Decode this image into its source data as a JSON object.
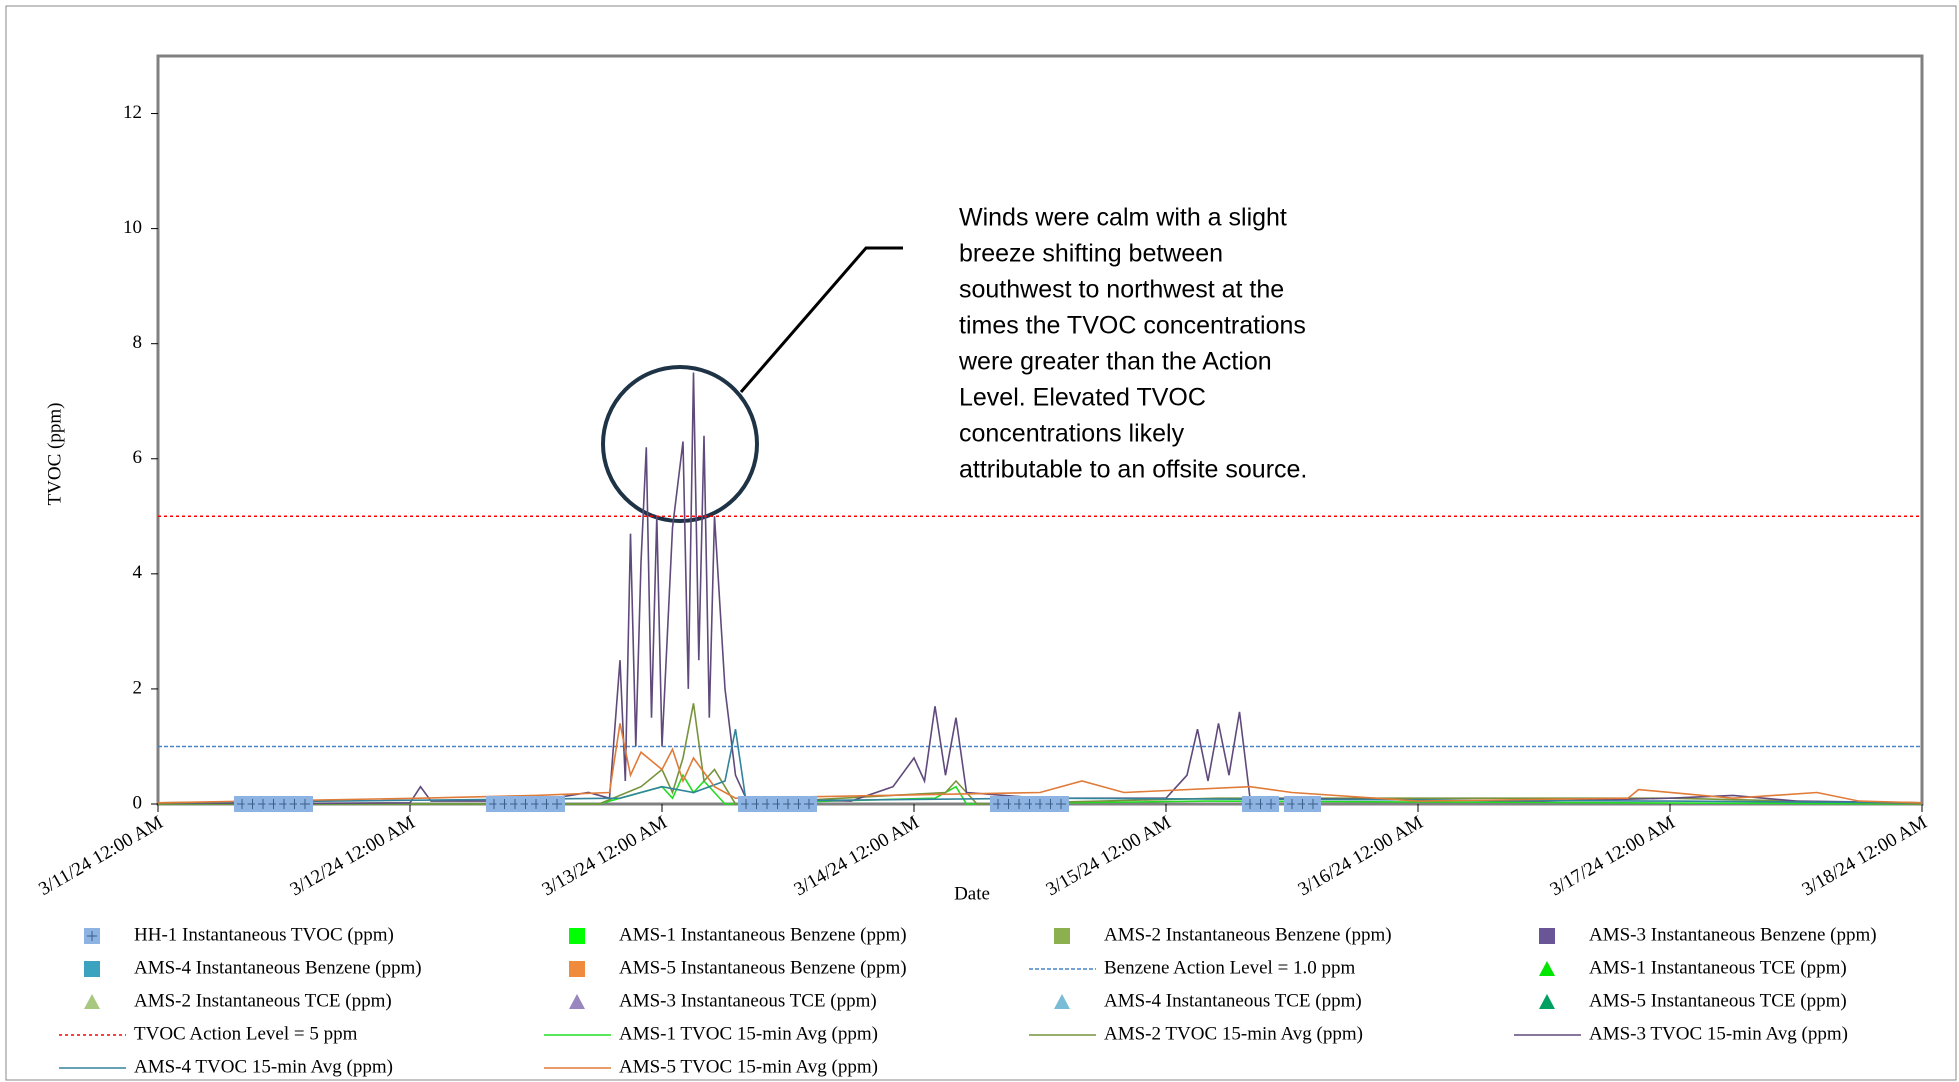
{
  "chart_data": {
    "type": "line",
    "xlabel": "Date",
    "ylabel": "TVOC (ppm)",
    "annotation": [
      "Winds were calm with a slight",
      "breeze shifting between",
      "southwest to northwest at the",
      "times the TVOC concentrations",
      "were greater than the Action",
      "Level. Elevated TVOC",
      "concentrations likely",
      "attributable to an offsite source."
    ],
    "xlim": [
      "2024-03-11T00:00",
      "2024-03-18T00:00"
    ],
    "xticks": [
      {
        "value": "2024-03-11T00:00",
        "label": "3/11/24 12:00 AM"
      },
      {
        "value": "2024-03-12T00:00",
        "label": "3/12/24 12:00 AM"
      },
      {
        "value": "2024-03-13T00:00",
        "label": "3/13/24 12:00 AM"
      },
      {
        "value": "2024-03-14T00:00",
        "label": "3/14/24 12:00 AM"
      },
      {
        "value": "2024-03-15T00:00",
        "label": "3/15/24 12:00 AM"
      },
      {
        "value": "2024-03-16T00:00",
        "label": "3/16/24 12:00 AM"
      },
      {
        "value": "2024-03-17T00:00",
        "label": "3/17/24 12:00 AM"
      },
      {
        "value": "2024-03-18T00:00",
        "label": "3/18/24 12:00 AM"
      }
    ],
    "ylim": [
      0,
      13
    ],
    "yticks": [
      0,
      2,
      4,
      6,
      8,
      10,
      12
    ],
    "series": [
      {
        "name": "HH-1 Instantaneous TVOC (ppm)",
        "color": "#8db3e2",
        "style": "square-cross",
        "x": [
          "2024-03-11T08:00",
          "2024-03-11T09:00",
          "2024-03-11T10:00",
          "2024-03-11T11:00",
          "2024-03-11T12:00",
          "2024-03-11T13:00",
          "2024-03-11T14:00",
          "2024-03-12T08:00",
          "2024-03-12T09:00",
          "2024-03-12T10:00",
          "2024-03-12T11:00",
          "2024-03-12T12:00",
          "2024-03-12T13:00",
          "2024-03-12T14:00",
          "2024-03-13T08:00",
          "2024-03-13T09:00",
          "2024-03-13T10:00",
          "2024-03-13T11:00",
          "2024-03-13T12:00",
          "2024-03-13T13:00",
          "2024-03-13T14:00",
          "2024-03-14T08:00",
          "2024-03-14T09:00",
          "2024-03-14T10:00",
          "2024-03-14T11:00",
          "2024-03-14T12:00",
          "2024-03-14T13:00",
          "2024-03-14T14:00",
          "2024-03-15T08:00",
          "2024-03-15T09:00",
          "2024-03-15T10:00",
          "2024-03-15T12:00",
          "2024-03-15T13:00",
          "2024-03-15T14:00"
        ],
        "values": [
          0,
          0,
          0,
          0,
          0,
          0,
          0,
          0,
          0,
          0,
          0,
          0,
          0,
          0,
          0,
          0,
          0,
          0,
          0,
          0,
          0,
          0,
          0,
          0,
          0,
          0,
          0,
          0,
          0,
          0,
          0,
          0,
          0,
          0
        ]
      },
      {
        "name": "AMS-1 Instantaneous Benzene (ppm)",
        "color": "#00ff00",
        "style": "square"
      },
      {
        "name": "AMS-2 Instantaneous Benzene (ppm)",
        "color": "#8db04e",
        "style": "square"
      },
      {
        "name": "AMS-3 Instantaneous Benzene (ppm)",
        "color": "#6a5596",
        "style": "square"
      },
      {
        "name": "AMS-4 Instantaneous Benzene (ppm)",
        "color": "#3ba3c0",
        "style": "square"
      },
      {
        "name": "AMS-5 Instantaneous Benzene (ppm)",
        "color": "#f08a3c",
        "style": "square"
      },
      {
        "name": "Benzene Action Level = 1.0 ppm",
        "color": "#4a86c8",
        "style": "reference",
        "value": 1.0
      },
      {
        "name": "AMS-1 Instantaneous TCE (ppm)",
        "color": "#00e600",
        "style": "triangle"
      },
      {
        "name": "AMS-2 Instantaneous TCE (ppm)",
        "color": "#a8c77f",
        "style": "triangle"
      },
      {
        "name": "AMS-3 Instantaneous TCE (ppm)",
        "color": "#9a86bf",
        "style": "triangle"
      },
      {
        "name": "AMS-4 Instantaneous TCE (ppm)",
        "color": "#79bcd6",
        "style": "triangle"
      },
      {
        "name": "AMS-5 Instantaneous TCE (ppm)",
        "color": "#00a060",
        "style": "triangle"
      },
      {
        "name": "TVOC Action Level = 5 ppm",
        "color": "#ff0000",
        "style": "reference",
        "value": 5
      },
      {
        "name": "AMS-1 TVOC 15-min Avg (ppm)",
        "color": "#22dd22",
        "style": "line",
        "x": [
          "2024-03-11T00:00",
          "2024-03-12T18:00",
          "2024-03-12T22:00",
          "2024-03-13T00:00",
          "2024-03-13T01:00",
          "2024-03-13T02:00",
          "2024-03-13T03:00",
          "2024-03-13T04:00",
          "2024-03-13T06:00",
          "2024-03-14T02:00",
          "2024-03-14T04:00",
          "2024-03-14T05:00",
          "2024-03-15T04:00",
          "2024-03-18T00:00"
        ],
        "values": [
          0,
          0,
          0.2,
          0.3,
          0.1,
          0.5,
          0.2,
          0.4,
          0,
          0.1,
          0.3,
          0,
          0.05,
          0
        ]
      },
      {
        "name": "AMS-2 TVOC 15-min Avg (ppm)",
        "color": "#77933c",
        "style": "line",
        "x": [
          "2024-03-11T00:00",
          "2024-03-12T18:00",
          "2024-03-12T22:00",
          "2024-03-13T00:00",
          "2024-03-13T01:00",
          "2024-03-13T02:00",
          "2024-03-13T03:00",
          "2024-03-13T04:00",
          "2024-03-13T05:00",
          "2024-03-13T07:00",
          "2024-03-14T03:00",
          "2024-03-14T04:00",
          "2024-03-14T06:00",
          "2024-03-15T05:00",
          "2024-03-17T00:00",
          "2024-03-18T00:00"
        ],
        "values": [
          0,
          0,
          0.3,
          0.6,
          0.2,
          0.8,
          1.75,
          0.4,
          0.6,
          0,
          0.2,
          0.4,
          0,
          0.1,
          0.1,
          0
        ]
      },
      {
        "name": "AMS-3 TVOC 15-min Avg (ppm)",
        "color": "#604a7b",
        "style": "line",
        "x": [
          "2024-03-11T00:00",
          "2024-03-11T12:00",
          "2024-03-12T00:00",
          "2024-03-12T01:00",
          "2024-03-12T02:00",
          "2024-03-12T12:00",
          "2024-03-12T17:00",
          "2024-03-12T19:00",
          "2024-03-12T20:00",
          "2024-03-12T20:30",
          "2024-03-12T21:00",
          "2024-03-12T21:30",
          "2024-03-12T22:00",
          "2024-03-12T22:30",
          "2024-03-12T23:00",
          "2024-03-12T23:30",
          "2024-03-13T00:00",
          "2024-03-13T01:00",
          "2024-03-13T02:00",
          "2024-03-13T02:30",
          "2024-03-13T03:00",
          "2024-03-13T03:30",
          "2024-03-13T04:00",
          "2024-03-13T04:30",
          "2024-03-13T05:00",
          "2024-03-13T06:00",
          "2024-03-13T07:00",
          "2024-03-13T08:00",
          "2024-03-13T18:00",
          "2024-03-13T22:00",
          "2024-03-14T00:00",
          "2024-03-14T01:00",
          "2024-03-14T02:00",
          "2024-03-14T03:00",
          "2024-03-14T04:00",
          "2024-03-14T05:00",
          "2024-03-14T12:00",
          "2024-03-15T00:00",
          "2024-03-15T02:00",
          "2024-03-15T03:00",
          "2024-03-15T04:00",
          "2024-03-15T05:00",
          "2024-03-15T06:00",
          "2024-03-15T07:00",
          "2024-03-15T08:00",
          "2024-03-16T12:00",
          "2024-03-17T00:00",
          "2024-03-17T06:00",
          "2024-03-17T12:00",
          "2024-03-18T00:00"
        ],
        "values": [
          0.02,
          0.01,
          0.02,
          0.3,
          0.05,
          0.05,
          0.2,
          0.1,
          2.5,
          0.4,
          4.7,
          1.0,
          4.2,
          6.2,
          1.5,
          5.0,
          1.0,
          4.8,
          6.3,
          2.0,
          7.5,
          2.5,
          6.4,
          1.5,
          5.0,
          2.0,
          0.5,
          0.1,
          0.05,
          0.3,
          0.8,
          0.4,
          1.7,
          0.5,
          1.5,
          0.2,
          0.1,
          0.1,
          0.5,
          1.3,
          0.4,
          1.4,
          0.5,
          1.6,
          0.1,
          0.05,
          0.1,
          0.15,
          0.05,
          0.02
        ]
      },
      {
        "name": "AMS-4 TVOC 15-min Avg (ppm)",
        "color": "#31849b",
        "style": "line",
        "x": [
          "2024-03-11T00:00",
          "2024-03-12T20:00",
          "2024-03-13T00:00",
          "2024-03-13T03:00",
          "2024-03-13T06:00",
          "2024-03-13T07:00",
          "2024-03-13T08:00",
          "2024-03-14T12:00",
          "2024-03-17T00:00",
          "2024-03-18T00:00"
        ],
        "values": [
          0.02,
          0.1,
          0.3,
          0.2,
          0.4,
          1.3,
          0.05,
          0.1,
          0.05,
          0.02
        ]
      },
      {
        "name": "AMS-5 TVOC 15-min Avg (ppm)",
        "color": "#e07b39",
        "style": "line",
        "x": [
          "2024-03-11T00:00",
          "2024-03-12T01:00",
          "2024-03-12T12:00",
          "2024-03-12T19:00",
          "2024-03-12T20:00",
          "2024-03-12T21:00",
          "2024-03-12T22:00",
          "2024-03-13T00:00",
          "2024-03-13T01:00",
          "2024-03-13T02:00",
          "2024-03-13T03:00",
          "2024-03-13T05:00",
          "2024-03-13T07:00",
          "2024-03-14T12:00",
          "2024-03-14T16:00",
          "2024-03-14T20:00",
          "2024-03-15T08:00",
          "2024-03-15T12:00",
          "2024-03-16T00:00",
          "2024-03-16T20:00",
          "2024-03-16T21:00",
          "2024-03-17T06:00",
          "2024-03-17T14:00",
          "2024-03-17T18:00",
          "2024-03-18T00:00"
        ],
        "values": [
          0.02,
          0.1,
          0.15,
          0.2,
          1.4,
          0.5,
          0.9,
          0.6,
          0.95,
          0.4,
          0.8,
          0.3,
          0.1,
          0.2,
          0.4,
          0.2,
          0.3,
          0.2,
          0.05,
          0.1,
          0.25,
          0.1,
          0.2,
          0.05,
          0.02
        ]
      }
    ]
  }
}
